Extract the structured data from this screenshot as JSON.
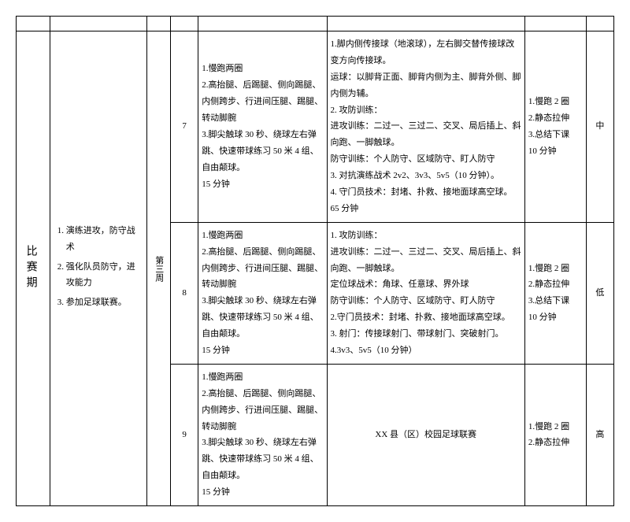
{
  "stage_label": "比赛期",
  "week_label": "第三周",
  "goals": [
    "演练进攻，防守战术",
    "强化队员防守，进攻能力",
    "参加足球联赛。"
  ],
  "sessions": [
    {
      "num": "7",
      "warmup": "1.慢跑两圈\n2.高抬腿、后踢腿、侧向踢腿、内侧跨步、行进间压腿、踢腿、转动脚腕\n3.脚尖触球 30 秒、绕球左右弹跳、快速带球练习 50 米 4 组、自由颠球。\n15 分钟",
      "main": "1.脚内侧传接球（地滚球），左右脚交替传接球改变方向传接球。\n运球：以脚背正面、脚背内侧为主、脚背外侧、脚内侧为辅。\n2. 攻防训练：\n进攻训练：二过一、三过二、交叉、局后插上、斜向跑、一脚触球。\n防守训练：个人防守、区域防守、盯人防守\n3. 对抗演练战术 2v2、3v3、5v5（10 分钟）。\n4. 守门员技术：封堵、扑救、接地面球高空球。\n65 分钟",
      "cooldown": "1.慢跑 2 圈\n2.静态拉伸\n3.总结下课\n10 分钟",
      "intensity": "中"
    },
    {
      "num": "8",
      "warmup": "1.慢跑两圈\n2.高抬腿、后踢腿、侧向踢腿、内侧跨步、行进间压腿、踢腿、转动脚腕\n3.脚尖触球 30 秒、绕球左右弹跳、快速带球练习 50 米 4 组、自由颠球。\n15 分钟",
      "main": "1. 攻防训练：\n进攻训练：二过一、三过二、交叉、局后插上、斜向跑、一脚触球。\n定位球战术：角球、任意球、界外球\n防守训练：个人防守、区域防守、盯人防守\n2.守门员技术：封堵、扑救、接地面球高空球。\n3. 射门：传接球射门、带球射门、突破射门。\n4.3v3、5v5（10 分钟）",
      "cooldown": "1.慢跑 2 圈\n2.静态拉伸\n3.总结下课\n10 分钟",
      "intensity": "低"
    },
    {
      "num": "9",
      "warmup": "1.慢跑两圈\n2.高抬腿、后踢腿、侧向踢腿、内侧跨步、行进间压腿、踢腿、转动脚腕\n3.脚尖触球 30 秒、绕球左右弹跳、快速带球练习 50 米 4 组、自由颠球。\n15 分钟",
      "main": "XX 县（区）校园足球联赛",
      "cooldown": "1.慢跑 2 圈\n2.静态拉伸",
      "intensity": "高"
    }
  ]
}
